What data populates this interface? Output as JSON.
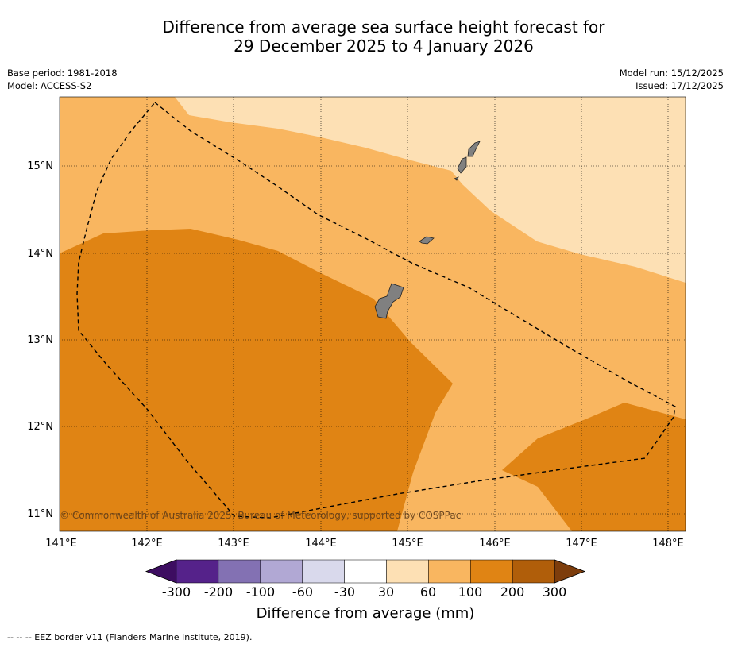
{
  "title_line1": "Difference from average sea surface height forecast for",
  "title_line2": "29 December 2025 to 4 January 2026",
  "base_period": "Base period: 1981-2018",
  "model": "Model: ACCESS-S2",
  "model_run": "Model run: 15/12/2025",
  "issued": "Issued: 17/12/2025",
  "copyright": "© Commonwealth of Australia 2025, Bureau of Meteorology, supported by COSPPac",
  "lat_ticks": [
    "15°N",
    "14°N",
    "13°N",
    "12°N",
    "11°N"
  ],
  "lon_ticks": [
    "141°E",
    "142°E",
    "143°E",
    "144°E",
    "145°E",
    "146°E",
    "147°E",
    "148°E"
  ],
  "colorbar": {
    "label": "Difference from average (mm)",
    "tick_labels": [
      "-300",
      "-200",
      "-100",
      "-60",
      "-30",
      "30",
      "60",
      "100",
      "200",
      "300"
    ],
    "colors": [
      "#3d0d61",
      "#55228a",
      "#8371b3",
      "#b1a8d4",
      "#d9d9ec",
      "#ffffff",
      "#fde0b4",
      "#f9b660",
      "#e08414",
      "#b05e0a",
      "#7d3d0c"
    ]
  },
  "legend_footer": "-- -- -- EEZ border V11 (Flanders Marine Institute, 2019).",
  "map_colors": {
    "band_30_60": "#fde0b4",
    "band_60_100": "#f9b660",
    "band_100_200": "#e08414",
    "land": "#808080"
  }
}
